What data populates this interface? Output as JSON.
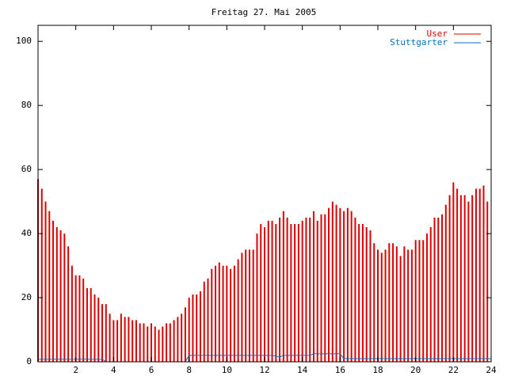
{
  "chart_data": {
    "type": "impulse",
    "title": "Freitag 27. Mai 2005",
    "x": [
      0,
      0.2,
      0.4,
      0.6,
      0.8,
      1,
      1.2,
      1.4,
      1.6,
      1.8,
      2,
      2.2,
      2.4,
      2.6,
      2.8,
      3,
      3.2,
      3.4,
      3.6,
      3.8,
      4,
      4.2,
      4.4,
      4.6,
      4.8,
      5,
      5.2,
      5.4,
      5.6,
      5.8,
      6,
      6.2,
      6.4,
      6.6,
      6.8,
      7,
      7.2,
      7.4,
      7.6,
      7.8,
      8,
      8.2,
      8.4,
      8.6,
      8.8,
      9,
      9.2,
      9.4,
      9.6,
      9.8,
      10,
      10.2,
      10.4,
      10.6,
      10.8,
      11,
      11.2,
      11.4,
      11.6,
      11.8,
      12,
      12.2,
      12.4,
      12.6,
      12.8,
      13,
      13.2,
      13.4,
      13.6,
      13.8,
      14,
      14.2,
      14.4,
      14.6,
      14.8,
      15,
      15.2,
      15.4,
      15.6,
      15.8,
      16,
      16.2,
      16.4,
      16.6,
      16.8,
      17,
      17.2,
      17.4,
      17.6,
      17.8,
      18,
      18.2,
      18.4,
      18.6,
      18.8,
      19,
      19.2,
      19.4,
      19.6,
      19.8,
      20,
      20.2,
      20.4,
      20.6,
      20.8,
      21,
      21.2,
      21.4,
      21.6,
      21.8,
      22,
      22.2,
      22.4,
      22.6,
      22.8,
      23,
      23.2,
      23.4,
      23.6,
      23.8
    ],
    "series": [
      {
        "name": "User",
        "color": "#dd0000",
        "style": "impulses",
        "values": [
          57,
          54,
          50,
          47,
          44,
          42,
          41,
          40,
          36,
          30,
          27,
          27,
          26,
          23,
          23,
          21,
          20,
          18,
          18,
          15,
          13,
          13,
          15,
          14,
          14,
          13,
          13,
          12,
          12,
          11,
          12,
          11,
          10,
          11,
          12,
          12,
          13,
          14,
          15,
          17,
          20,
          21,
          21,
          22,
          25,
          26,
          29,
          30,
          31,
          30,
          30,
          29,
          30,
          32,
          34,
          35,
          35,
          35,
          40,
          43,
          42,
          44,
          44,
          43,
          45,
          47,
          45,
          43,
          43,
          43,
          44,
          45,
          45,
          47,
          44,
          46,
          46,
          48,
          50,
          49,
          48,
          47,
          48,
          47,
          45,
          43,
          43,
          42,
          41,
          37,
          35,
          34,
          35,
          37,
          37,
          36,
          33,
          36,
          35,
          35,
          38,
          38,
          38,
          40,
          42,
          45,
          45,
          46,
          49,
          52,
          56,
          54,
          52,
          52,
          50,
          52,
          54,
          54,
          55,
          50
        ]
      },
      {
        "name": "Stuttgarter",
        "color": "#0070c0",
        "style": "lines",
        "x": [
          0,
          3.4,
          3.6,
          7.8,
          8,
          12.4,
          12.8,
          13,
          14.4,
          14.6,
          16,
          16.2,
          20,
          24
        ],
        "values": [
          0.8,
          0.8,
          0,
          0,
          2,
          2,
          1.5,
          2,
          2,
          2.5,
          2.5,
          1,
          1,
          1
        ]
      }
    ],
    "xlim": [
      0,
      24
    ],
    "xticks": [
      2,
      4,
      6,
      8,
      10,
      12,
      14,
      16,
      18,
      20,
      22,
      24
    ],
    "ylim": [
      0,
      105
    ],
    "yticks": [
      0,
      20,
      40,
      60,
      80,
      100
    ],
    "legend": "top-right"
  }
}
